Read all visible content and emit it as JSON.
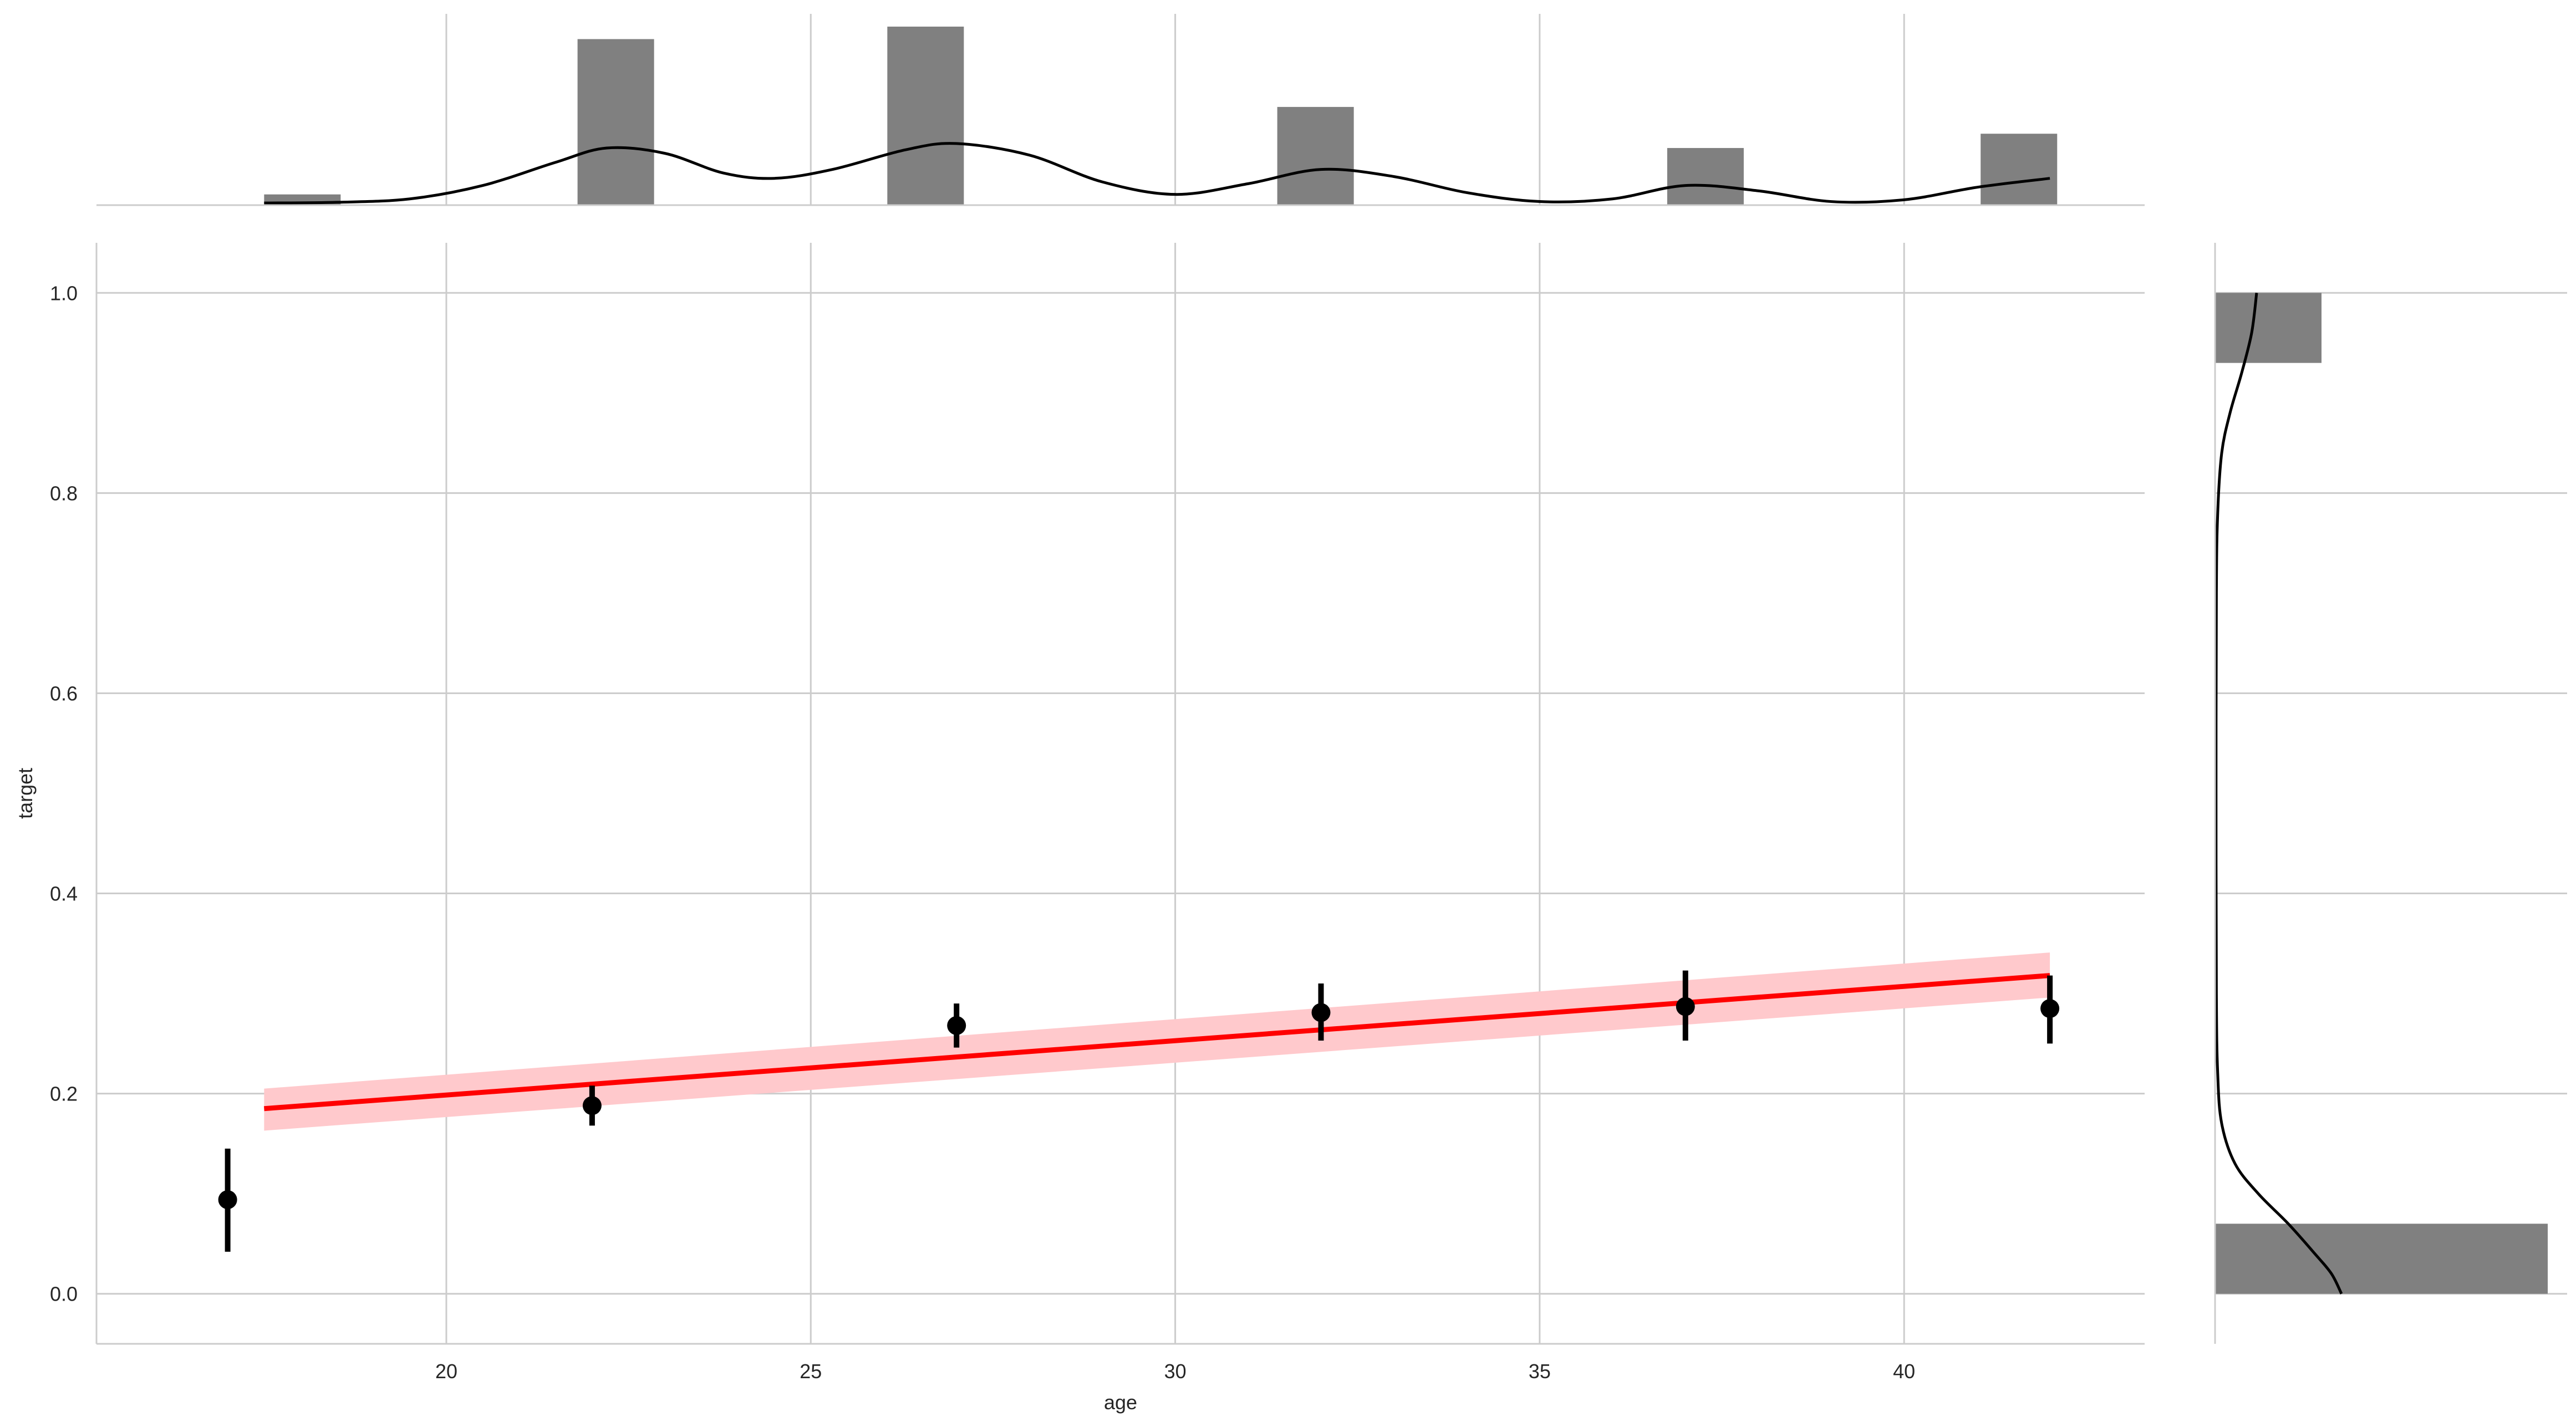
{
  "chart_data": {
    "type": "scatter",
    "subtype": "jointplot-regression",
    "xlabel": "age",
    "ylabel": "target",
    "xlim": [
      15.2,
      43.3
    ],
    "ylim": [
      -0.05,
      1.05
    ],
    "xticks": [
      20,
      25,
      30,
      35,
      40
    ],
    "yticks": [
      0.0,
      0.2,
      0.4,
      0.6,
      0.8,
      1.0
    ],
    "xtick_labels": [
      "20",
      "25",
      "30",
      "35",
      "40"
    ],
    "ytick_labels": [
      "0.0",
      "0.2",
      "0.4",
      "0.6",
      "0.8",
      "1.0"
    ],
    "grid": true,
    "points": [
      {
        "x": 17,
        "y": 0.094,
        "lo": 0.042,
        "hi": 0.145
      },
      {
        "x": 22,
        "y": 0.188,
        "lo": 0.168,
        "hi": 0.208
      },
      {
        "x": 27,
        "y": 0.268,
        "lo": 0.246,
        "hi": 0.29
      },
      {
        "x": 32,
        "y": 0.281,
        "lo": 0.253,
        "hi": 0.31
      },
      {
        "x": 37,
        "y": 0.287,
        "lo": 0.253,
        "hi": 0.323
      },
      {
        "x": 42,
        "y": 0.285,
        "lo": 0.25,
        "hi": 0.318
      }
    ],
    "regression": {
      "x_start": 17.5,
      "x_end": 42,
      "y_start": 0.185,
      "y_end": 0.318,
      "ci_start": [
        0.163,
        0.205
      ],
      "ci_end": [
        0.296,
        0.341
      ],
      "color": "#ff0000",
      "band_color": "#ffc9cc"
    },
    "point_color": "#000000",
    "marginal_x_hist": {
      "bins": [
        {
          "x0": 17.5,
          "x1": 18.55,
          "count": 0.06
        },
        {
          "x0": 21.8,
          "x1": 22.85,
          "count": 0.93
        },
        {
          "x0": 26.05,
          "x1": 27.1,
          "count": 1.0
        },
        {
          "x0": 31.4,
          "x1": 32.45,
          "count": 0.55
        },
        {
          "x0": 36.75,
          "x1": 37.8,
          "count": 0.32
        },
        {
          "x0": 41.05,
          "x1": 42.1,
          "count": 0.4
        }
      ],
      "kde": [
        [
          17.5,
          0.012
        ],
        [
          18.5,
          0.016
        ],
        [
          19.5,
          0.035
        ],
        [
          20.5,
          0.11
        ],
        [
          21.5,
          0.24
        ],
        [
          22.2,
          0.32
        ],
        [
          23.0,
          0.29
        ],
        [
          23.8,
          0.18
        ],
        [
          24.5,
          0.15
        ],
        [
          25.3,
          0.2
        ],
        [
          26.3,
          0.31
        ],
        [
          27.0,
          0.345
        ],
        [
          28.0,
          0.28
        ],
        [
          29.0,
          0.13
        ],
        [
          30.0,
          0.06
        ],
        [
          31.0,
          0.12
        ],
        [
          32.0,
          0.2
        ],
        [
          33.0,
          0.16
        ],
        [
          34.0,
          0.07
        ],
        [
          35.0,
          0.02
        ],
        [
          36.0,
          0.035
        ],
        [
          37.0,
          0.11
        ],
        [
          38.0,
          0.08
        ],
        [
          39.0,
          0.02
        ],
        [
          40.0,
          0.03
        ],
        [
          41.0,
          0.1
        ],
        [
          42.0,
          0.15
        ]
      ],
      "hist_color": "#808080"
    },
    "marginal_y_hist": {
      "bins": [
        {
          "y0": 0.0,
          "y1": 0.07,
          "count": 1.0
        },
        {
          "y0": 0.93,
          "y1": 1.0,
          "count": 0.32
        }
      ],
      "kde": [
        [
          0.0,
          0.38
        ],
        [
          0.02,
          0.35
        ],
        [
          0.04,
          0.3
        ],
        [
          0.07,
          0.22
        ],
        [
          0.1,
          0.13
        ],
        [
          0.13,
          0.06
        ],
        [
          0.17,
          0.02
        ],
        [
          0.22,
          0.008
        ],
        [
          0.3,
          0.004
        ],
        [
          0.5,
          0.003
        ],
        [
          0.7,
          0.004
        ],
        [
          0.78,
          0.008
        ],
        [
          0.84,
          0.02
        ],
        [
          0.88,
          0.045
        ],
        [
          0.92,
          0.08
        ],
        [
          0.96,
          0.11
        ],
        [
          1.0,
          0.125
        ]
      ],
      "hist_color": "#808080"
    }
  }
}
